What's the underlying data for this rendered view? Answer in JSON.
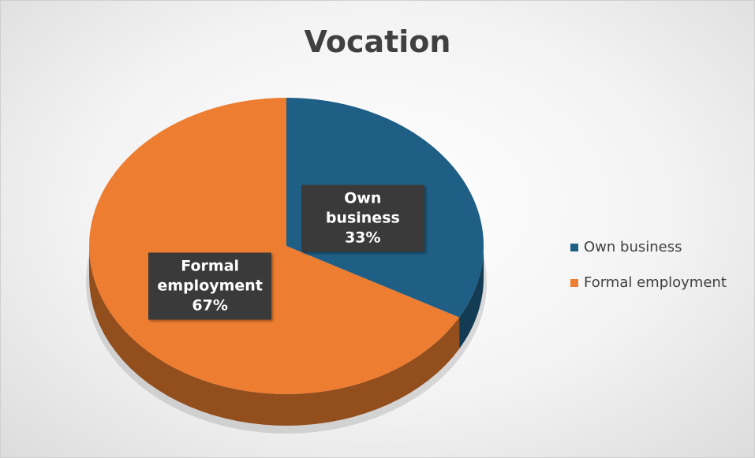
{
  "chart_data": {
    "type": "pie",
    "title": "Vocation",
    "categories": [
      "Own business",
      "Formal employment"
    ],
    "values": [
      33,
      67
    ],
    "value_labels": [
      "33%",
      "67%"
    ],
    "colors": [
      "#1f5f86",
      "#ed7d31"
    ],
    "legend": "right"
  }
}
